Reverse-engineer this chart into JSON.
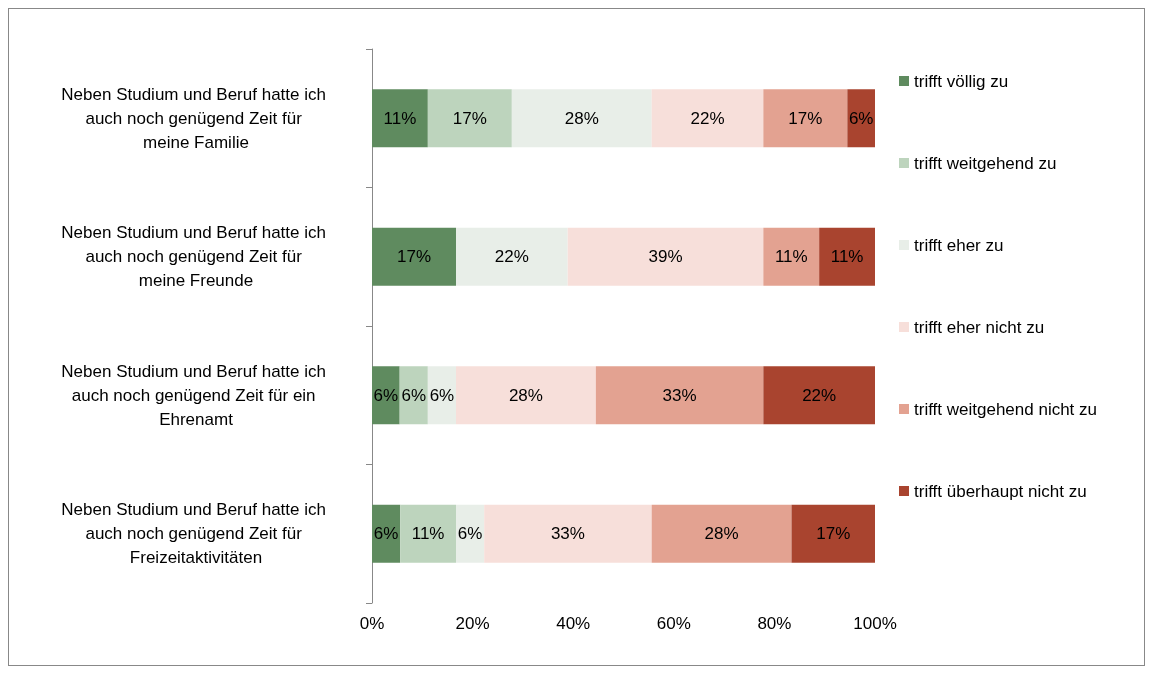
{
  "chart_data": {
    "type": "bar",
    "orientation": "horizontal",
    "stacked": true,
    "legend": "right",
    "categories": [
      "Neben Studium und Beruf hatte ich auch noch genügend Zeit für meine Familie",
      "Neben Studium und Beruf hatte ich auch noch genügend Zeit für meine Freunde",
      "Neben Studium und Beruf hatte ich auch noch genügend Zeit für ein Ehrenamt",
      "Neben Studium und Beruf hatte ich auch noch genügend Zeit für Freizeitaktivitäten"
    ],
    "xlim": [
      0,
      100
    ],
    "xticks": [
      {
        "value": 0,
        "label": "0%"
      },
      {
        "value": 20,
        "label": "20%"
      },
      {
        "value": 40,
        "label": "40%"
      },
      {
        "value": 60,
        "label": "60%"
      },
      {
        "value": 80,
        "label": "80%"
      },
      {
        "value": 100,
        "label": "100%"
      }
    ],
    "series": [
      {
        "name": "trifft völlig zu",
        "color": "#5f8b5f",
        "values": [
          11.1,
          16.7,
          5.5,
          5.6
        ],
        "value_labels": [
          "11%",
          "17%",
          "6%",
          "6%"
        ]
      },
      {
        "name": "trifft weitgehend zu",
        "color": "#bdd4bd",
        "values": [
          16.7,
          0,
          5.6,
          11.1
        ],
        "value_labels": [
          "17%",
          null,
          "6%",
          "11%"
        ]
      },
      {
        "name": "trifft eher zu",
        "color": "#e8eee8",
        "values": [
          27.8,
          22.2,
          5.6,
          5.6
        ],
        "value_labels": [
          "28%",
          "22%",
          "6%",
          "6%"
        ]
      },
      {
        "name": "trifft eher nicht zu",
        "color": "#f7dfda",
        "values": [
          22.2,
          38.9,
          27.8,
          33.3
        ],
        "value_labels": [
          "22%",
          "39%",
          "28%",
          "33%"
        ]
      },
      {
        "name": "trifft weitgehend nicht zu",
        "color": "#e3a291",
        "values": [
          16.7,
          11.1,
          33.3,
          27.8
        ],
        "value_labels": [
          "17%",
          "11%",
          "33%",
          "28%"
        ]
      },
      {
        "name": "trifft überhaupt nicht zu",
        "color": "#a9442f",
        "values": [
          5.5,
          11.1,
          22.2,
          16.6
        ],
        "value_labels": [
          "6%",
          "11%",
          "22%",
          "17%"
        ]
      }
    ]
  }
}
